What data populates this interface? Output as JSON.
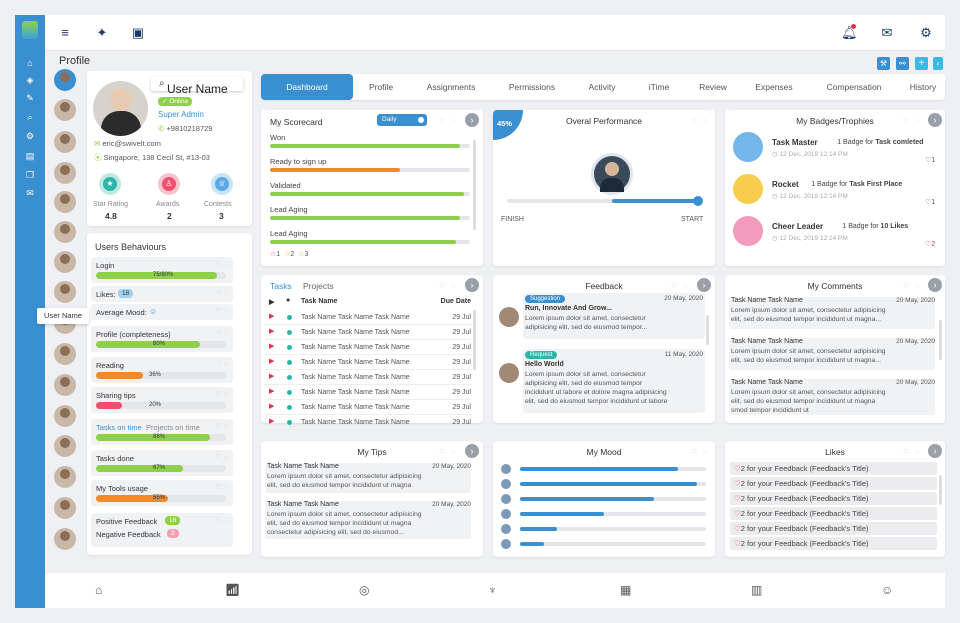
{
  "colors": {
    "primary": "#3a8fd0",
    "green": "#8fd04a",
    "orange": "#f08a2a",
    "red": "#e0334a",
    "navy": "#1d3a6a"
  },
  "topbar": {
    "icons": [
      "menu-icon",
      "twitter-icon",
      "inbox-icon"
    ],
    "right_icons": [
      "bell-icon",
      "mail-icon",
      "settings-icon"
    ]
  },
  "page": {
    "title": "Profile"
  },
  "profile": {
    "name": "User Name",
    "status": "Online",
    "role": "Super Admin",
    "phone": "+9810218729",
    "email": "eric@swivelt.com",
    "address": "Singapore, 138 Cecil St, #13-03",
    "stats": [
      {
        "label": "Star Rating",
        "value": "4.8"
      },
      {
        "label": "Awards",
        "value": "2"
      },
      {
        "label": "Contests",
        "value": "3"
      }
    ],
    "tooltip": "User Name"
  },
  "behaviours": {
    "title": "Users Behaviours",
    "rows": [
      {
        "label": "Login",
        "value": "75/80%",
        "fill": 0.93,
        "color": "#8fd04a"
      },
      {
        "label": "Likes:",
        "value": "18"
      },
      {
        "label": "Average Mood:",
        "value": ""
      },
      {
        "label": "Profile (completeness)",
        "value": "80%",
        "fill": 0.8,
        "color": "#8fd04a"
      },
      {
        "label": "Reading",
        "value": "36%",
        "fill": 0.36,
        "color": "#f08a2a"
      },
      {
        "label": "Sharing tips",
        "value": "20%",
        "fill": 0.2,
        "color": "#f0506e"
      },
      {
        "label": "Tasks on time",
        "label2": "Projects on time",
        "value": "88%",
        "fill": 0.88,
        "color": "#8fd04a"
      },
      {
        "label": "Tasks done",
        "value": "67%",
        "fill": 0.67,
        "color": "#8fd04a"
      },
      {
        "label": "My Tools usage",
        "value": "55%",
        "fill": 0.55,
        "color": "#f08a2a"
      },
      {
        "label": "Positive Feedback",
        "value": "16",
        "label2": "Negative Feedback",
        "value2": "2"
      }
    ]
  },
  "tabs": [
    "Dashboard",
    "Profile",
    "Assignments",
    "Permissions",
    "Activity",
    "iTime",
    "Review",
    "Expenses",
    "Compensation",
    "History"
  ],
  "scorecard": {
    "title": "My Scorecard",
    "toggle": "Daily",
    "rows": [
      {
        "label": "Won",
        "fill": 0.95,
        "color": "#8fd04a"
      },
      {
        "label": "Ready to sign up",
        "fill": 0.65,
        "color": "#f08a2a"
      },
      {
        "label": "Validated",
        "fill": 0.97,
        "color": "#8fd04a"
      },
      {
        "label": "Lead Aging",
        "fill": 0.95,
        "color": "#8fd04a"
      },
      {
        "label": "Lead Aging",
        "fill": 0.93,
        "color": "#8fd04a"
      }
    ],
    "stars": [
      "1",
      "2",
      "3"
    ]
  },
  "performance": {
    "title": "Overal Performance",
    "percent": "45%",
    "finish": "FINISH",
    "start": "START",
    "level": 0.45
  },
  "badges": {
    "title": "My Badges/Trophies",
    "items": [
      {
        "name": "Task Master",
        "desc": "1 Badge for",
        "bold": "Task comleted",
        "date": "12 Dec, 2019 12:14 PM",
        "count": "1",
        "color": "#5aa9e6"
      },
      {
        "name": "Rocket",
        "desc": "1 Badge for",
        "bold": "Task First Place",
        "date": "12 Dec, 2019 12:14 PM",
        "count": "1",
        "color": "#f4c430"
      },
      {
        "name": "Cheer Leader",
        "desc": "1 Badge for",
        "bold": "10 Likes",
        "date": "12 Dec, 2019 12:14 PM",
        "count": "2",
        "color": "#f08ab0"
      }
    ]
  },
  "tasks": {
    "tab1": "Tasks",
    "tab2": "Projects",
    "col_name": "Task Name",
    "col_due": "Due Date",
    "rows": [
      {
        "name": "Task Name Task Name Task Name",
        "due": "29 Jul"
      },
      {
        "name": "Task Name Task Name Task Name",
        "due": "29 Jul"
      },
      {
        "name": "Task Name Task Name Task Name",
        "due": "29 Jul"
      },
      {
        "name": "Task Name Task Name Task Name",
        "due": "29 Jul"
      },
      {
        "name": "Task Name Task Name Task Name",
        "due": "29 Jul"
      },
      {
        "name": "Task Name Task Name Task Name",
        "due": "29 Jul"
      },
      {
        "name": "Task Name Task Name Task Name",
        "due": "29 Jul"
      },
      {
        "name": "Task Name Task Name Task Name",
        "due": "29 Jul"
      }
    ]
  },
  "feedback": {
    "title": "Feedback",
    "items": [
      {
        "tag": "Suggestion",
        "date": "20 May, 2020",
        "title": "Run, Innovate And Grow...",
        "body1": "Lorem ipsum dolor sit amet, consectetur",
        "body2": "adipisicing elit, sed do eiusmod tempor...",
        "tagcolor": "#3a8fd0"
      },
      {
        "tag": "Request",
        "date": "11 May, 2020",
        "title": "Hello World",
        "body1": "Lorem ipsum dolor sit amet, consectetur",
        "body2": "adipisicing elit, sed do eiusmod tempor",
        "body3": "incididunt ut labore et dolore magna adipisicing",
        "body4": "elit, sed do eiusmod tempor incididunt ut labore",
        "tagcolor": "#2bb6a8"
      }
    ]
  },
  "comments": {
    "title": "My Comments",
    "items": [
      {
        "name": "Task Name Task Name",
        "date": "20 May, 2020",
        "l1": "Lorem ipsum dolor sit amet, consectetur adipisicing",
        "l2": "elit, sed do eiusmod tempor incididunt ut magna..."
      },
      {
        "name": "Task Name Task Name",
        "date": "20 May, 2020",
        "l1": "Lorem ipsum dolor sit amet, consectetur adipisicing",
        "l2": "elit, sed do eiusmod tempor incididunt ut magna..."
      },
      {
        "name": "Task Name Task Name",
        "date": "20 May, 2020",
        "l1": "Lorem ipsum dolor sit amet, consectetur adipisicing",
        "l2": "elit, sed do eiusmod tempor incididunt ut magna",
        "l3": "smod tempor incididunt ut"
      }
    ]
  },
  "tips": {
    "title": "My Tips",
    "items": [
      {
        "name": "Task Name Task Name",
        "date": "20 May, 2020",
        "l1": "Lorem ipsum dolor sit amet, consectetur adipisicing",
        "l2": "elit, sed do eiusmod tempor incididunt ut magna"
      },
      {
        "name": "Task Name Task Name",
        "date": "20 May, 2020",
        "l1": "Lorem ipsum dolor sit amet, consectetur adipisicing",
        "l2": "elit, sed do eiusmod tempor incididunt ut magna",
        "l3": "consectetur adipisicing elit, sed do eiusmod..."
      }
    ]
  },
  "mood": {
    "title": "My Mood",
    "levels": [
      0.85,
      0.95,
      0.72,
      0.45,
      0.2,
      0.13
    ]
  },
  "likes": {
    "title": "Likes",
    "items": [
      "2",
      "2",
      "2",
      "2",
      "2",
      "2"
    ],
    "text": "for your Feedback (Feedback's Title)"
  },
  "bottombar": {
    "icons": [
      "home-icon",
      "growth-icon",
      "award-icon",
      "trophy-icon",
      "calculator-icon",
      "calendar-icon",
      "smile-icon"
    ]
  }
}
